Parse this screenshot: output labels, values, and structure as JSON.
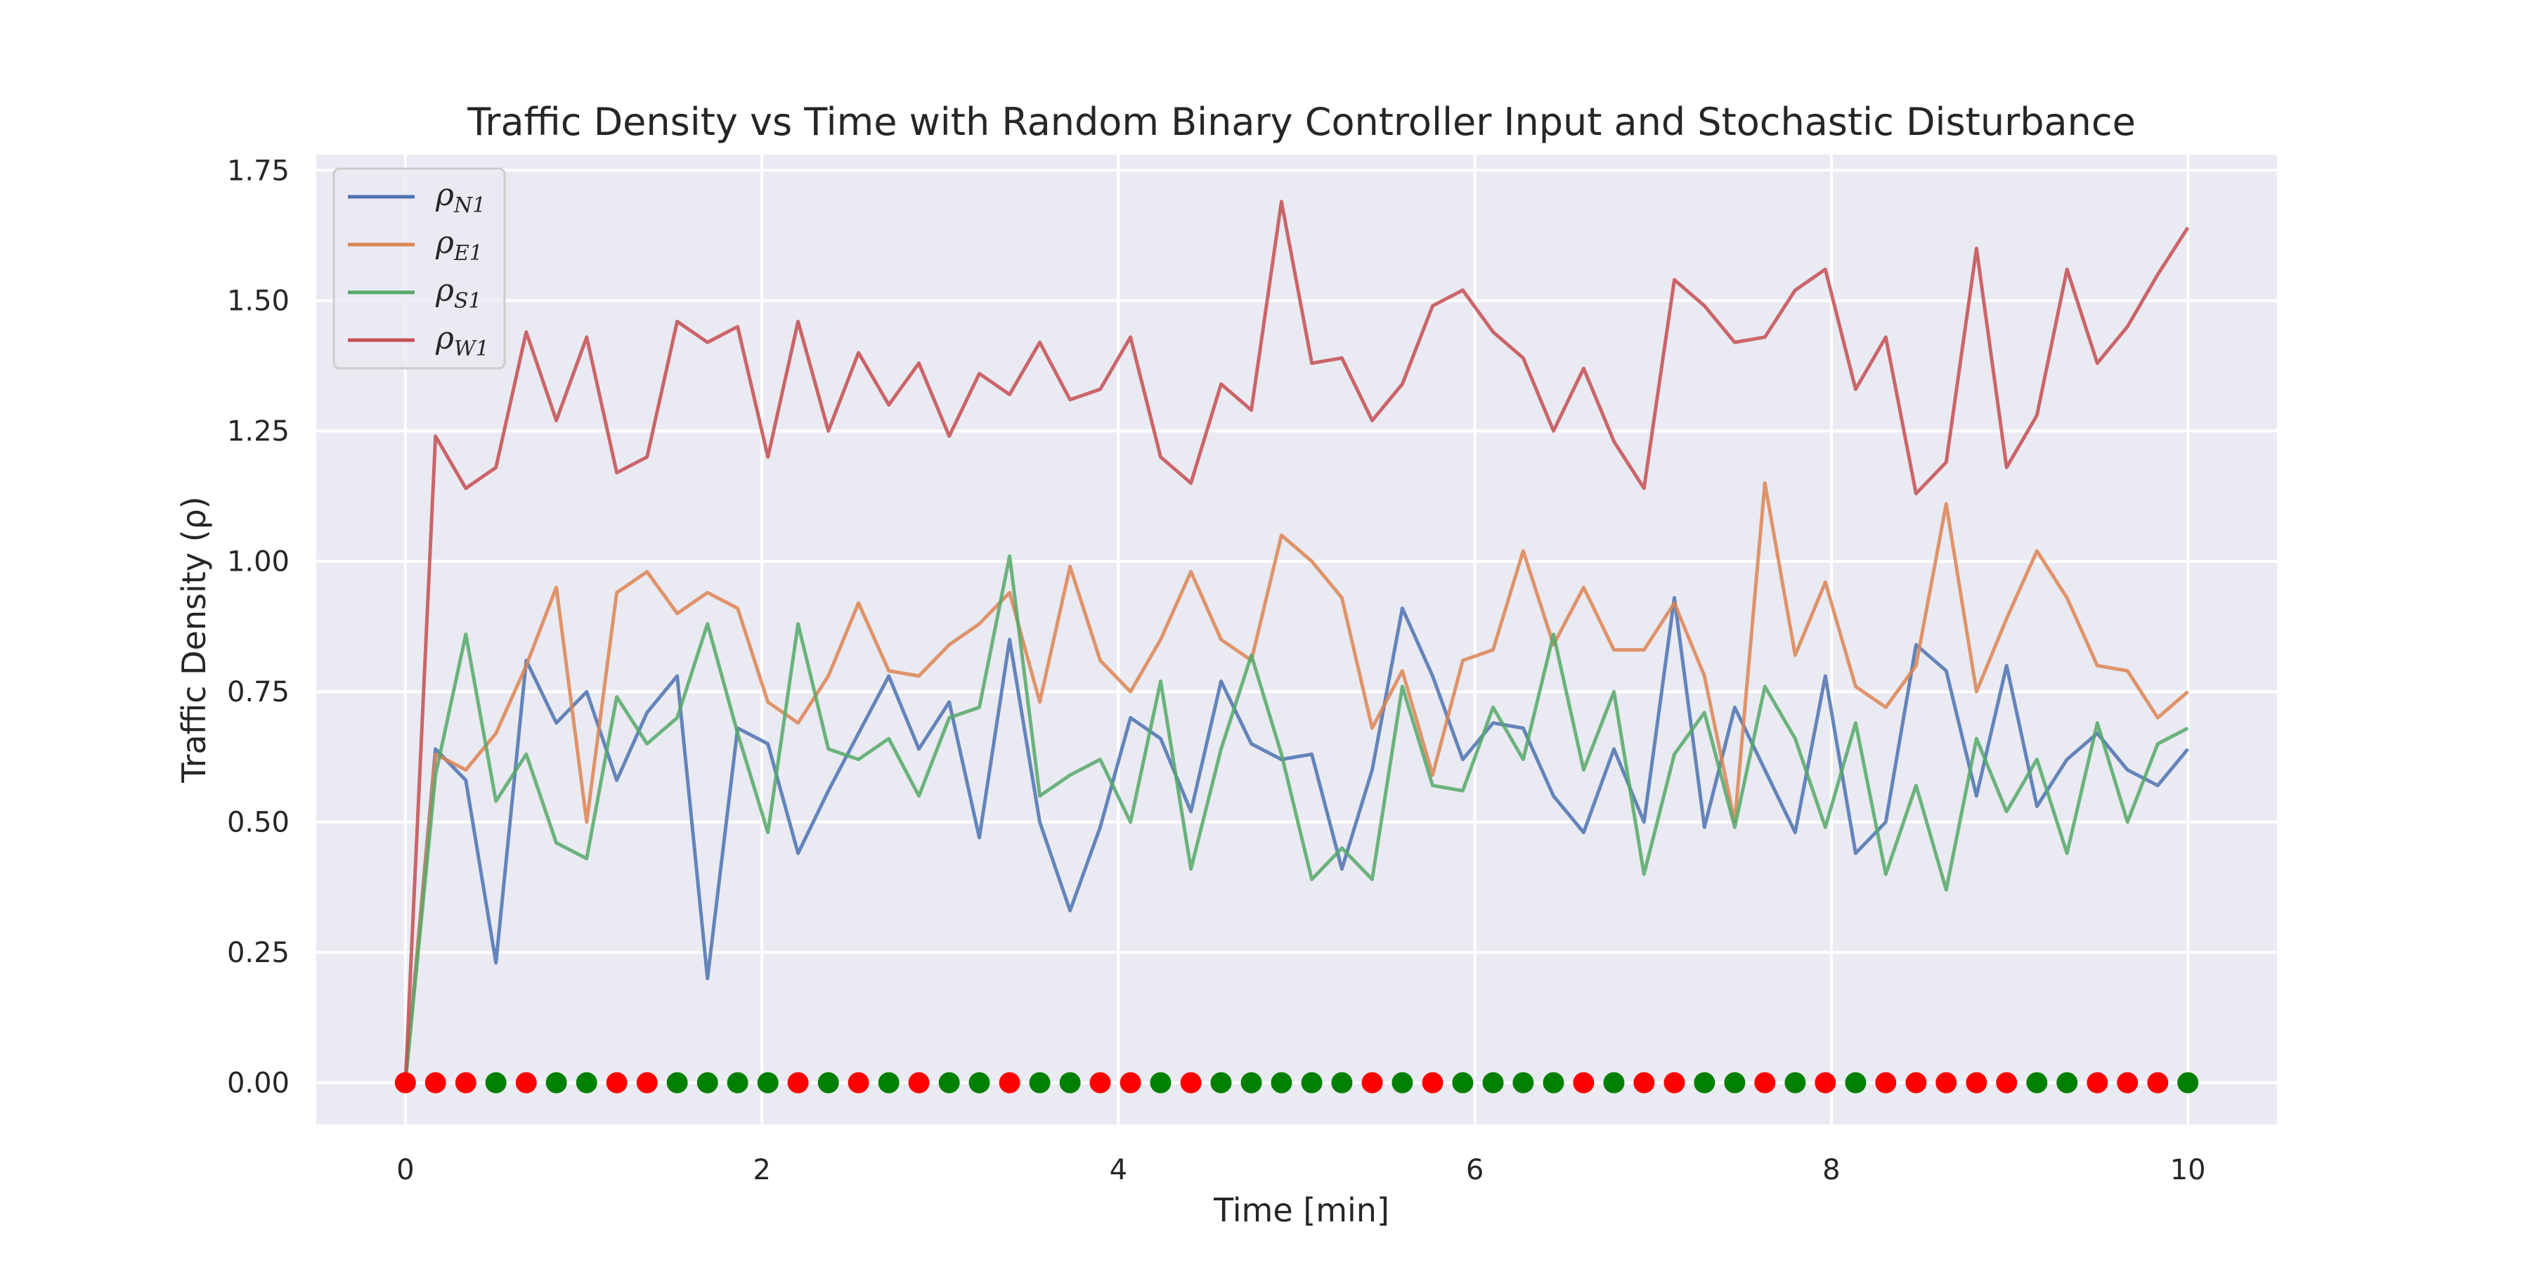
{
  "chart_data": {
    "type": "line",
    "title": "Traffic Density vs Time with Random Binary Controller Input and Stochastic Disturbance",
    "xlabel": "Time [min]",
    "ylabel": "Traffic Density (ρ)",
    "xlim": [
      -0.5,
      10.5
    ],
    "ylim": [
      -0.08,
      1.78
    ],
    "xticks": [
      0,
      2,
      4,
      6,
      8,
      10
    ],
    "xtick_labels": [
      "0",
      "2",
      "4",
      "6",
      "8",
      "10"
    ],
    "yticks": [
      0,
      0.25,
      0.5,
      0.75,
      1.0,
      1.25,
      1.5,
      1.75
    ],
    "ytick_labels": [
      "0.00",
      "0.25",
      "0.50",
      "0.75",
      "1.00",
      "1.25",
      "1.50",
      "1.75"
    ],
    "grid": true,
    "legend_position": "top-left",
    "background": "#eaeaf2",
    "x": [
      0,
      0.169,
      0.339,
      0.508,
      0.678,
      0.847,
      1.017,
      1.186,
      1.356,
      1.525,
      1.695,
      1.864,
      2.034,
      2.203,
      2.373,
      2.542,
      2.712,
      2.881,
      3.051,
      3.22,
      3.39,
      3.559,
      3.729,
      3.898,
      4.068,
      4.237,
      4.407,
      4.576,
      4.746,
      4.915,
      5.085,
      5.254,
      5.424,
      5.593,
      5.763,
      5.932,
      6.102,
      6.271,
      6.441,
      6.61,
      6.78,
      6.949,
      7.119,
      7.288,
      7.458,
      7.627,
      7.797,
      7.966,
      8.136,
      8.305,
      8.475,
      8.644,
      8.814,
      8.983,
      9.153,
      9.322,
      9.492,
      9.661,
      9.831,
      10
    ],
    "series": [
      {
        "name": "ρ",
        "subscript": "N1",
        "color": "#4c72b0",
        "values": [
          0,
          0.64,
          0.58,
          0.23,
          0.81,
          0.69,
          0.75,
          0.58,
          0.71,
          0.78,
          0.2,
          0.68,
          0.65,
          0.44,
          0.56,
          0.67,
          0.78,
          0.64,
          0.73,
          0.47,
          0.85,
          0.5,
          0.33,
          0.49,
          0.7,
          0.66,
          0.52,
          0.77,
          0.65,
          0.62,
          0.63,
          0.41,
          0.6,
          0.91,
          0.78,
          0.62,
          0.69,
          0.68,
          0.55,
          0.48,
          0.64,
          0.5,
          0.93,
          0.49,
          0.72,
          0.6,
          0.48,
          0.78,
          0.44,
          0.5,
          0.84,
          0.79,
          0.55,
          0.8,
          0.53,
          0.62,
          0.67,
          0.6,
          0.57,
          0.64
        ]
      },
      {
        "name": "ρ",
        "subscript": "E1",
        "color": "#dd8452",
        "values": [
          0,
          0.63,
          0.6,
          0.67,
          0.8,
          0.95,
          0.5,
          0.94,
          0.98,
          0.9,
          0.94,
          0.91,
          0.73,
          0.69,
          0.78,
          0.92,
          0.79,
          0.78,
          0.84,
          0.88,
          0.94,
          0.73,
          0.99,
          0.81,
          0.75,
          0.85,
          0.98,
          0.85,
          0.81,
          1.05,
          1.0,
          0.93,
          0.68,
          0.79,
          0.59,
          0.81,
          0.83,
          1.02,
          0.84,
          0.95,
          0.83,
          0.83,
          0.92,
          0.78,
          0.5,
          1.15,
          0.82,
          0.96,
          0.76,
          0.72,
          0.8,
          1.11,
          0.75,
          0.89,
          1.02,
          0.93,
          0.8,
          0.79,
          0.7,
          0.75
        ]
      },
      {
        "name": "ρ",
        "subscript": "S1",
        "color": "#55a868",
        "values": [
          0,
          0.59,
          0.86,
          0.54,
          0.63,
          0.46,
          0.43,
          0.74,
          0.65,
          0.7,
          0.88,
          0.67,
          0.48,
          0.88,
          0.64,
          0.62,
          0.66,
          0.55,
          0.7,
          0.72,
          1.01,
          0.55,
          0.59,
          0.62,
          0.5,
          0.77,
          0.41,
          0.64,
          0.82,
          0.63,
          0.39,
          0.45,
          0.39,
          0.76,
          0.57,
          0.56,
          0.72,
          0.62,
          0.86,
          0.6,
          0.75,
          0.4,
          0.63,
          0.71,
          0.49,
          0.76,
          0.66,
          0.49,
          0.69,
          0.4,
          0.57,
          0.37,
          0.66,
          0.52,
          0.62,
          0.44,
          0.69,
          0.5,
          0.65,
          0.68
        ]
      },
      {
        "name": "ρ",
        "subscript": "W1",
        "color": "#c44e52",
        "values": [
          0,
          1.24,
          1.14,
          1.18,
          1.44,
          1.27,
          1.43,
          1.17,
          1.2,
          1.46,
          1.42,
          1.45,
          1.2,
          1.46,
          1.25,
          1.4,
          1.3,
          1.38,
          1.24,
          1.36,
          1.32,
          1.42,
          1.31,
          1.33,
          1.43,
          1.2,
          1.15,
          1.34,
          1.29,
          1.69,
          1.38,
          1.39,
          1.27,
          1.34,
          1.49,
          1.52,
          1.44,
          1.39,
          1.25,
          1.37,
          1.23,
          1.14,
          1.54,
          1.49,
          1.42,
          1.43,
          1.52,
          1.56,
          1.33,
          1.43,
          1.13,
          1.19,
          1.6,
          1.18,
          1.28,
          1.56,
          1.38,
          1.45,
          1.55,
          1.64
        ]
      }
    ],
    "controller_input": {
      "y": 0,
      "on_color": "#008000",
      "off_color": "#ff0000",
      "states": [
        0,
        0,
        0,
        1,
        0,
        1,
        1,
        0,
        0,
        1,
        1,
        1,
        1,
        0,
        1,
        0,
        1,
        0,
        1,
        1,
        0,
        1,
        1,
        0,
        0,
        1,
        0,
        1,
        1,
        1,
        1,
        1,
        0,
        1,
        0,
        1,
        1,
        1,
        1,
        0,
        1,
        0,
        0,
        1,
        1,
        0,
        1,
        0,
        1,
        0,
        0,
        0,
        0,
        0,
        1,
        1,
        0,
        0,
        0,
        1
      ]
    }
  }
}
